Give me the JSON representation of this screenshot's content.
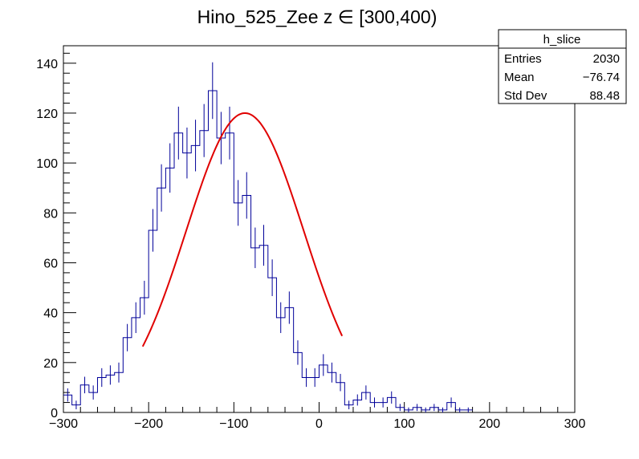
{
  "chart_data": {
    "type": "histogram",
    "title": "Hino_525_Zee z  ∈ [300,400)",
    "xlabel": "",
    "ylabel": "",
    "xlim": [
      -300,
      300
    ],
    "ylim": [
      0,
      147
    ],
    "bin_width": 10,
    "x_ticks": [
      -300,
      -200,
      -100,
      0,
      100,
      200,
      300
    ],
    "x_tick_labels": [
      "−300",
      "−200",
      "−100",
      "0",
      "100",
      "200",
      "300"
    ],
    "y_ticks": [
      0,
      20,
      40,
      60,
      80,
      100,
      120,
      140
    ],
    "y_tick_labels": [
      "0",
      "20",
      "40",
      "60",
      "80",
      "100",
      "120",
      "140"
    ],
    "bin_edges_start": -300,
    "counts": [
      7,
      3,
      11,
      8,
      14,
      15,
      16,
      30,
      38,
      46,
      73,
      90,
      98,
      112,
      104,
      107,
      113,
      129,
      110,
      112,
      84,
      87,
      66,
      67,
      54,
      38,
      42,
      24,
      14,
      14,
      19,
      16,
      12,
      3,
      5,
      8,
      4,
      4,
      6,
      2,
      1,
      2,
      1,
      2,
      1,
      4,
      1,
      1
    ],
    "series": [
      {
        "name": "h_slice",
        "color": "#000099",
        "style": "histogram-with-errors"
      },
      {
        "name": "fit",
        "color": "#e00000",
        "style": "line",
        "function": "gaussian",
        "amplitude": 120,
        "mean": -87,
        "sigma": 69,
        "range": [
          -207,
          27
        ]
      }
    ],
    "legend": {
      "position": "top-right",
      "name": "h_slice",
      "rows": [
        {
          "label": "Entries",
          "value": "2030"
        },
        {
          "label": "Mean",
          "value": "−76.74"
        },
        {
          "label": "Std Dev",
          "value": "88.48"
        }
      ]
    }
  }
}
